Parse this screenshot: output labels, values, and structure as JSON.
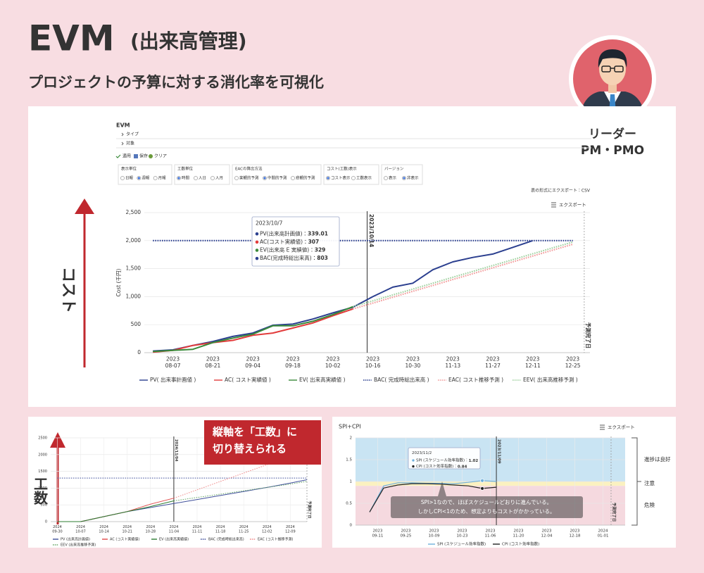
{
  "header": {
    "title": "EVM",
    "title_note": "(出来高管理)",
    "subtitle": "プロジェクトの予算に対する消化率を可視化"
  },
  "persona": {
    "role": "リーダー",
    "team": "PM・PMO"
  },
  "main_panel": {
    "heading": "EVM",
    "menu": [
      "タイプ",
      "対象"
    ],
    "toolbar": [
      "適用",
      "保存",
      "クリア"
    ],
    "filters": [
      {
        "label": "表示単位",
        "options": [
          "日報",
          "週報",
          "月報"
        ],
        "selected": 1
      },
      {
        "label": "工数単位",
        "options": [
          "時間",
          "人日",
          "人月"
        ],
        "selected": 0
      },
      {
        "label": "EACの算出方法",
        "options": [
          "楽観的予測",
          "中間的予測",
          "悲観的予測"
        ],
        "selected": 1
      },
      {
        "label": "コスト(工数)表示",
        "options": [
          "コスト表示",
          "工数表示"
        ],
        "selected": 0
      },
      {
        "label": "バージョン",
        "options": [
          "表示",
          "非表示"
        ],
        "selected": 1
      }
    ],
    "export_note": "表の形式にエクスポート：CSV",
    "export": "エクスポート",
    "side_label": "コスト",
    "chart": {
      "type": "line",
      "y_label": "Cost (千円)",
      "xlim": [
        "2023-07-28",
        "2023-12-31"
      ],
      "ylim": [
        0,
        2500
      ],
      "yticks": [
        0,
        500,
        {
          "value": 1000,
          "label": "1,000"
        },
        {
          "value": 1500,
          "label": "1,500"
        },
        {
          "value": 2000,
          "label": "2,000"
        },
        {
          "value": 2500,
          "label": "2,500"
        }
      ],
      "xticks": [
        {
          "value": "2023-08-07",
          "label": "2023\n08-07"
        },
        {
          "value": "2023-08-21",
          "label": "2023\n08-21"
        },
        {
          "value": "2023-09-04",
          "label": "2023\n09-04"
        },
        {
          "value": "2023-09-18",
          "label": "2023\n09-18"
        },
        {
          "value": "2023-10-02",
          "label": "2023\n10-02"
        },
        {
          "value": "2023-10-16",
          "label": "2023\n10-16"
        },
        {
          "value": "2023-10-30",
          "label": "2023\n10-30"
        },
        {
          "value": "2023-11-13",
          "label": "2023\n11-13"
        },
        {
          "value": "2023-11-27",
          "label": "2023\n11-27"
        },
        {
          "value": "2023-12-11",
          "label": "2023\n12-11"
        },
        {
          "value": "2023-12-25",
          "label": "2023\n12-25"
        }
      ],
      "grid": true,
      "x": [
        "2023-07-31",
        "2023-08-07",
        "2023-08-14",
        "2023-08-21",
        "2023-08-28",
        "2023-09-04",
        "2023-09-11",
        "2023-09-18",
        "2023-09-25",
        "2023-10-02",
        "2023-10-09",
        "2023-10-16",
        "2023-10-23",
        "2023-10-30",
        "2023-11-06",
        "2023-11-13",
        "2023-11-20",
        "2023-11-27",
        "2023-12-04",
        "2023-12-11",
        "2023-12-18",
        "2023-12-25"
      ],
      "series": [
        {
          "name": "PV( 出来事計画値 )",
          "color": "#2b3f8f",
          "style": "solid",
          "values": [
            30,
            50,
            130,
            200,
            290,
            350,
            490,
            510,
            600,
            710,
            810,
            1000,
            1170,
            1240,
            1480,
            1620,
            1700,
            1760,
            1880,
            2000,
            null,
            null
          ]
        },
        {
          "name": "AC( コスト実績値 )",
          "color": "#e23b3b",
          "style": "solid",
          "values": [
            10,
            40,
            130,
            180,
            220,
            310,
            350,
            440,
            530,
            660,
            780,
            null,
            null,
            null,
            null,
            null,
            null,
            null,
            null,
            null,
            null,
            null
          ]
        },
        {
          "name": "EV( 出来高実績値 )",
          "color": "#3a8a3a",
          "style": "solid",
          "values": [
            20,
            40,
            60,
            180,
            260,
            330,
            480,
            480,
            560,
            680,
            820,
            null,
            null,
            null,
            null,
            null,
            null,
            null,
            null,
            null,
            null,
            null
          ]
        },
        {
          "name": "BAC( 完成時総出来高 )",
          "color": "#2b3f8f",
          "style": "dotted",
          "values": [
            2000,
            2000,
            2000,
            2000,
            2000,
            2000,
            2000,
            2000,
            2000,
            2000,
            2000,
            2000,
            2000,
            2000,
            2000,
            2000,
            2000,
            2000,
            2000,
            2000,
            2000,
            2000
          ]
        },
        {
          "name": "EAC( コスト推移予測 )",
          "color": "#f29b9b",
          "style": "dotted",
          "values": [
            null,
            null,
            null,
            null,
            null,
            null,
            null,
            null,
            null,
            null,
            780,
            885,
            990,
            1095,
            1200,
            1305,
            1410,
            1515,
            1620,
            1725,
            1830,
            1935
          ]
        },
        {
          "name": "EEV( 出来高推移予測 )",
          "color": "#9fd19f",
          "style": "dotted",
          "values": [
            null,
            null,
            null,
            null,
            null,
            null,
            null,
            null,
            null,
            null,
            820,
            925,
            1030,
            1135,
            1240,
            1345,
            1450,
            1555,
            1660,
            1765,
            1870,
            1975
          ]
        }
      ],
      "markers": [
        {
          "x": "2023-10-14",
          "label": "2023/10/14"
        },
        {
          "x": "2023-12-29",
          "label": "予測完了日"
        }
      ],
      "tooltip": {
        "date": "2023/10/7",
        "items": [
          {
            "label": "PV(出来高計画値)：",
            "value": 339.01,
            "color": "#2b3f8f"
          },
          {
            "label": "AC(コスト実績値)：",
            "value": 307,
            "color": "#e23b3b"
          },
          {
            "label": "EV(出来高 E 実績値)：",
            "value": 329,
            "color": "#3a8a3a"
          },
          {
            "label": "BAC(完成時総出来高)：",
            "value": 803,
            "color": "#2b3f8f"
          }
        ]
      }
    }
  },
  "hours_panel": {
    "callout": [
      "縦軸を「工数」に",
      "切り替えられる"
    ],
    "side_label": "工数",
    "chart": {
      "type": "line",
      "xlim": [
        "2024-09-28",
        "2024-12-14"
      ],
      "ylim": [
        0,
        2500
      ],
      "yticks": [
        0,
        500,
        1000,
        1500,
        2000,
        2500
      ],
      "xticks": [
        {
          "value": "2024-09-30",
          "label": "2024\n09-30"
        },
        {
          "value": "2024-10-07",
          "label": "2024\n10-07"
        },
        {
          "value": "2024-10-14",
          "label": "2024\n10-14"
        },
        {
          "value": "2024-10-21",
          "label": "2024\n10-21"
        },
        {
          "value": "2024-10-28",
          "label": "2024\n10-28"
        },
        {
          "value": "2024-11-04",
          "label": "2024\n11-04"
        },
        {
          "value": "2024-11-11",
          "label": "2024\n11-11"
        },
        {
          "value": "2024-11-18",
          "label": "2024\n11-18"
        },
        {
          "value": "2024-11-25",
          "label": "2024\n11-25"
        },
        {
          "value": "2024-12-02",
          "label": "2024\n12-02"
        },
        {
          "value": "2024-12-09",
          "label": "2024\n12-09"
        }
      ],
      "grid": true,
      "x": [
        "2024-09-30",
        "2024-10-07",
        "2024-10-14",
        "2024-10-21",
        "2024-10-28",
        "2024-11-04",
        "2024-11-11",
        "2024-11-18",
        "2024-11-25",
        "2024-12-02",
        "2024-12-09",
        "2024-12-14"
      ],
      "series": [
        {
          "name": "PV (出来高計画値)",
          "color": "#3f4f9a",
          "style": "solid",
          "values": [
            0,
            0,
            150,
            300,
            420,
            540,
            660,
            780,
            900,
            1020,
            1150,
            1250
          ]
        },
        {
          "name": "AC (コスト実績値)",
          "color": "#e04848",
          "style": "solid",
          "values": [
            0,
            0,
            150,
            300,
            520,
            700,
            null,
            null,
            null,
            null,
            null,
            null
          ]
        },
        {
          "name": "EV (出来高実績値)",
          "color": "#2e7d32",
          "style": "solid",
          "values": [
            0,
            0,
            150,
            300,
            450,
            620,
            null,
            null,
            null,
            null,
            null,
            null
          ]
        },
        {
          "name": "BAC (完成時総出来高)",
          "color": "#3f4f9a",
          "style": "dotted",
          "values": [
            1300,
            1300,
            1300,
            1300,
            1300,
            1300,
            1300,
            1300,
            1300,
            1300,
            1300,
            1300
          ]
        },
        {
          "name": "EAC (コスト推移予測)",
          "color": "#f08a8a",
          "style": "dotted",
          "values": [
            null,
            null,
            null,
            null,
            null,
            700,
            950,
            1200,
            1450,
            1700,
            1950,
            2150
          ]
        },
        {
          "name": "EEV (出来高推移予測)",
          "color": "#6aa86a",
          "style": "dotted",
          "values": [
            null,
            null,
            null,
            null,
            null,
            620,
            720,
            820,
            920,
            1020,
            1120,
            1200
          ]
        }
      ],
      "markers": [
        {
          "x": "2024-11-04",
          "label": "2024/11/04"
        },
        {
          "x": "2024-12-14",
          "label": "予測完了日"
        }
      ]
    }
  },
  "index_panel": {
    "title": "SPI+CPI",
    "export": "エクスポート",
    "callout": [
      "SPI>1なので、ほぼスケジュールどおりに進んでいる。",
      "しかしCPI<1のため、想定よりもコストがかかっている。"
    ],
    "chart": {
      "type": "line",
      "xlim": [
        "2023-08-31",
        "2024-01-12"
      ],
      "ylim": [
        0,
        2
      ],
      "yticks": [
        0,
        0.5,
        1,
        1.5,
        2
      ],
      "xticks": [
        {
          "value": "2023-09-11",
          "label": "2023\n09-11"
        },
        {
          "value": "2023-09-25",
          "label": "2023\n09-25"
        },
        {
          "value": "2023-10-09",
          "label": "2023\n10-09"
        },
        {
          "value": "2023-10-23",
          "label": "2023\n10-23"
        },
        {
          "value": "2023-11-06",
          "label": "2023\n11-06"
        },
        {
          "value": "2023-11-20",
          "label": "2023\n11-20"
        },
        {
          "value": "2023-12-04",
          "label": "2023\n12-04"
        },
        {
          "value": "2023-12-18",
          "label": "2023\n12-18"
        },
        {
          "value": "2024-01-01",
          "label": "2024\n01-01"
        }
      ],
      "grid": true,
      "bands": [
        {
          "from": 1,
          "to": 2,
          "color": "#c9e4f3",
          "label": "進捗は良好"
        },
        {
          "from": 0.9,
          "to": 1,
          "color": "#fbf1c0",
          "label": "注意"
        },
        {
          "from": 0,
          "to": 0.9,
          "color": "#f5d9df",
          "label": "危険"
        }
      ],
      "x": [
        "2023-09-07",
        "2023-09-14",
        "2023-09-21",
        "2023-09-28",
        "2023-10-05",
        "2023-10-12",
        "2023-10-19",
        "2023-10-26",
        "2023-11-02",
        "2023-11-09"
      ],
      "series": [
        {
          "name": "SPI (スケジュール効率指数)",
          "color": "#6fb0dc",
          "style": "solid",
          "values": [
            0.3,
            0.9,
            0.97,
            0.97,
            0.96,
            0.96,
            0.95,
            0.98,
            1.02,
            1.0
          ]
        },
        {
          "name": "CPI (コスト効率指数)",
          "color": "#222222",
          "style": "solid",
          "values": [
            0.3,
            0.85,
            0.92,
            0.95,
            0.95,
            0.94,
            0.92,
            0.9,
            0.84,
            0.87
          ]
        }
      ],
      "markers": [
        {
          "x": "2023-11-09",
          "label": "2023/11/09"
        },
        {
          "x": "2024-01-05",
          "label": "予測完了日"
        }
      ],
      "tooltip": {
        "date": "2023/11/2",
        "items": [
          {
            "label": "SPI (スケジュール効率指数)：",
            "value": 1.02,
            "color": "#6fb0dc"
          },
          {
            "label": "CPI (コスト効率指数)：",
            "value": 0.84,
            "color": "#222222"
          }
        ]
      }
    }
  }
}
